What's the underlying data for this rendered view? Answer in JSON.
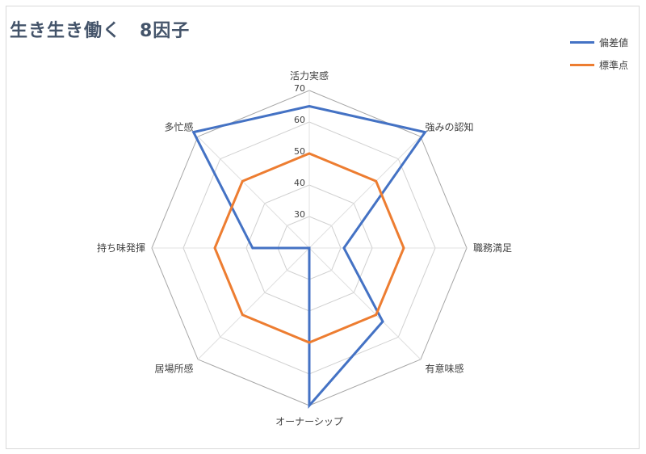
{
  "chart_data": {
    "type": "radar",
    "title": "生き生き働く　8因子",
    "categories": [
      "活力実感",
      "強みの認知",
      "職務満足",
      "有意味感",
      "オーナーシップ",
      "居場所感",
      "持ち味発揮",
      "多忙感"
    ],
    "ticks": [
      "30",
      "40",
      "50",
      "60",
      "70"
    ],
    "rlim": [
      20,
      70
    ],
    "grid": true,
    "legend_position": "top-right",
    "series": [
      {
        "name": "偏差値",
        "color": "#4472c4",
        "values": [
          65,
          72,
          31,
          53,
          70,
          20,
          38,
          72
        ]
      },
      {
        "name": "標準点",
        "color": "#ed7d31",
        "values": [
          50,
          50,
          50,
          50,
          50,
          50,
          50,
          50
        ]
      }
    ]
  }
}
